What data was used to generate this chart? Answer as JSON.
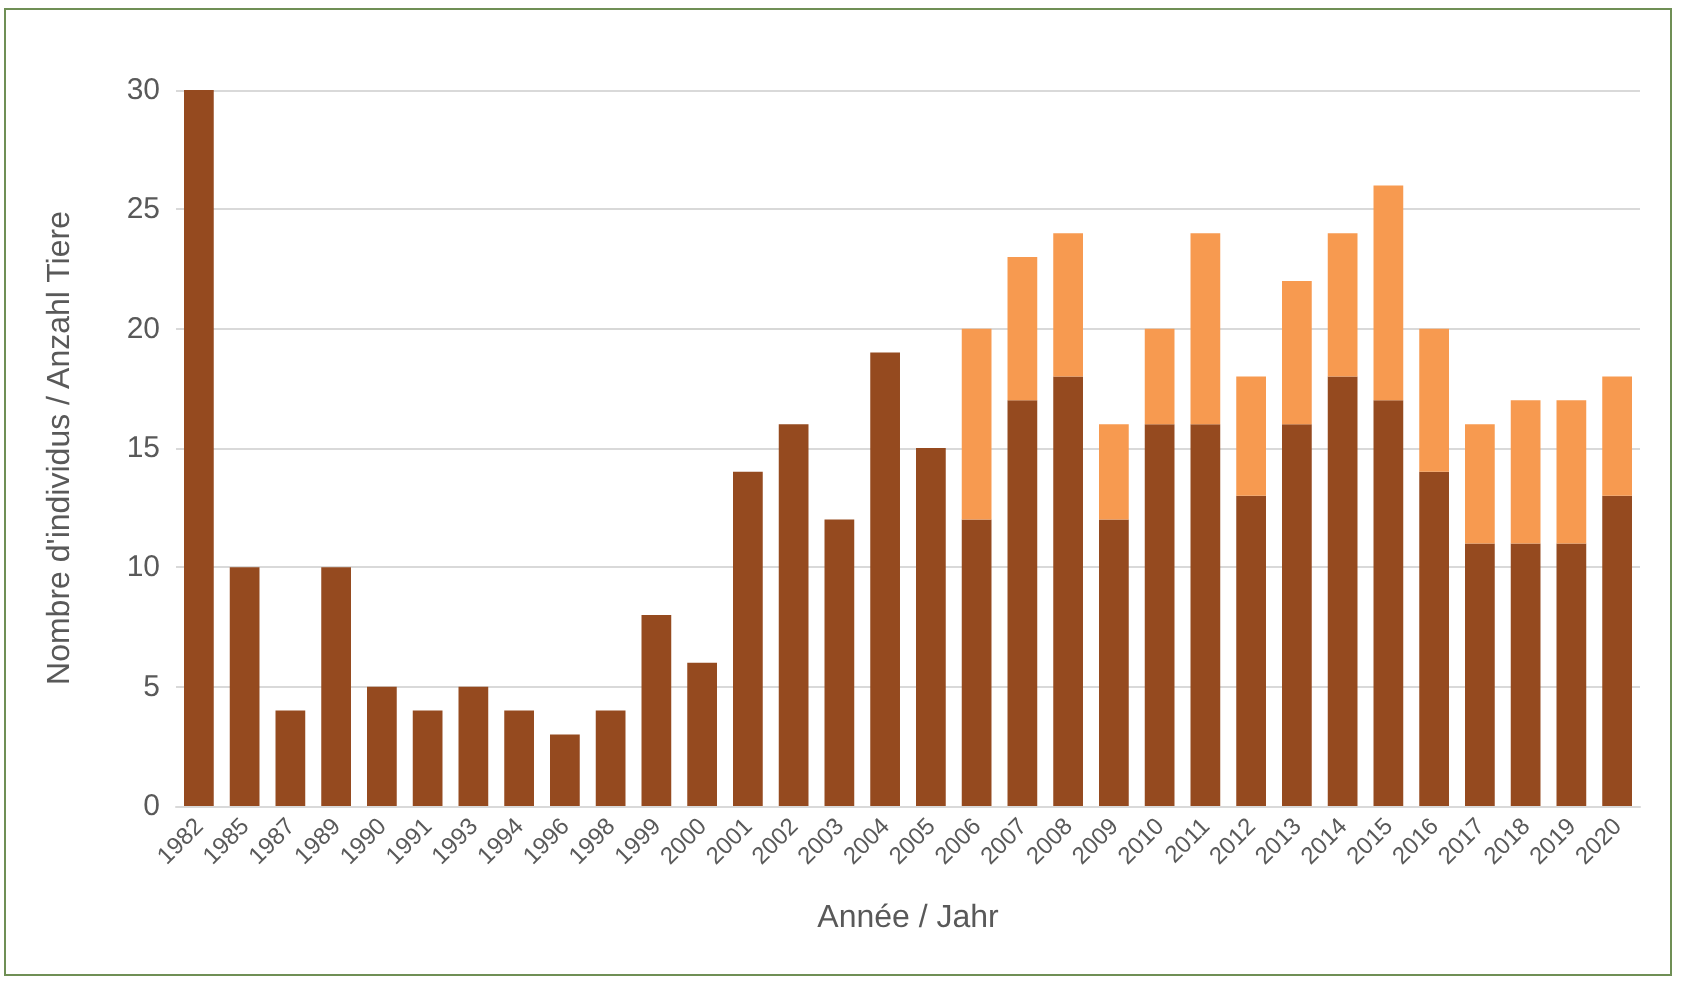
{
  "chart_data": {
    "type": "bar",
    "stacked": true,
    "xlabel": "Année / Jahr",
    "ylabel": "Nombre d'individus / Anzahl Tiere",
    "categories": [
      "1982",
      "1985",
      "1987",
      "1989",
      "1990",
      "1991",
      "1993",
      "1994",
      "1996",
      "1998",
      "1999",
      "2000",
      "2001",
      "2002",
      "2003",
      "2004",
      "2005",
      "2006",
      "2007",
      "2008",
      "2009",
      "2010",
      "2011",
      "2012",
      "2013",
      "2014",
      "2015",
      "2016",
      "2017",
      "2018",
      "2019",
      "2020"
    ],
    "series": [
      {
        "color": "#954a1f",
        "values": [
          30,
          10,
          4,
          10,
          5,
          4,
          5,
          4,
          3,
          4,
          8,
          6,
          14,
          16,
          12,
          19,
          15,
          12,
          17,
          18,
          12,
          16,
          16,
          13,
          16,
          18,
          17,
          14,
          11,
          11,
          11,
          13
        ]
      },
      {
        "color": "#f79a50",
        "values": [
          null,
          null,
          null,
          null,
          null,
          null,
          null,
          null,
          null,
          null,
          null,
          null,
          null,
          null,
          null,
          null,
          null,
          8,
          6,
          6,
          4,
          4,
          8,
          5,
          6,
          6,
          9,
          6,
          5,
          6,
          6,
          5
        ]
      }
    ],
    "ylim": [
      0,
      30
    ],
    "yticks": [
      0,
      5,
      10,
      15,
      20,
      25,
      30
    ],
    "grid": "y"
  }
}
